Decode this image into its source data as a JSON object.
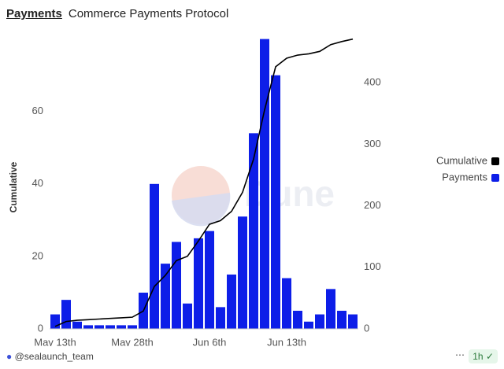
{
  "header": {
    "title": "Payments",
    "subtitle": "Commerce Payments Protocol"
  },
  "chart_data": {
    "type": "bar_line",
    "categories": [
      "May 13th",
      null,
      null,
      null,
      null,
      null,
      null,
      "May 28th",
      null,
      null,
      null,
      null,
      null,
      null,
      "Jun 6th",
      null,
      null,
      null,
      null,
      null,
      null,
      "Jun 13th",
      null,
      null,
      null,
      null,
      null,
      null
    ],
    "series": [
      {
        "name": "Payments",
        "type": "bar",
        "color": "#0d1ee8",
        "axis": "y",
        "values": [
          4,
          8,
          2,
          1,
          1,
          1,
          1,
          1,
          10,
          40,
          18,
          24,
          7,
          25,
          27,
          6,
          15,
          31,
          54,
          80,
          70,
          14,
          5,
          2,
          4,
          11,
          5,
          4
        ]
      },
      {
        "name": "Cumulative",
        "type": "line",
        "color": "#000000",
        "axis": "y2",
        "values": [
          4,
          12,
          14,
          15,
          16,
          17,
          18,
          19,
          29,
          69,
          87,
          111,
          118,
          143,
          170,
          176,
          191,
          222,
          276,
          356,
          426,
          440,
          445,
          447,
          451,
          462,
          467,
          471
        ]
      }
    ],
    "ylabel": "Cumulative",
    "ylim": [
      0,
      81
    ],
    "yticks": [
      0,
      20,
      40,
      60
    ],
    "y2lim": [
      0,
      477
    ],
    "y2ticks": [
      0,
      100,
      200,
      300,
      400
    ],
    "legend": "right",
    "watermark": "Dune"
  },
  "footer": {
    "author": "@sealaunch_team",
    "refresh": "1h"
  }
}
